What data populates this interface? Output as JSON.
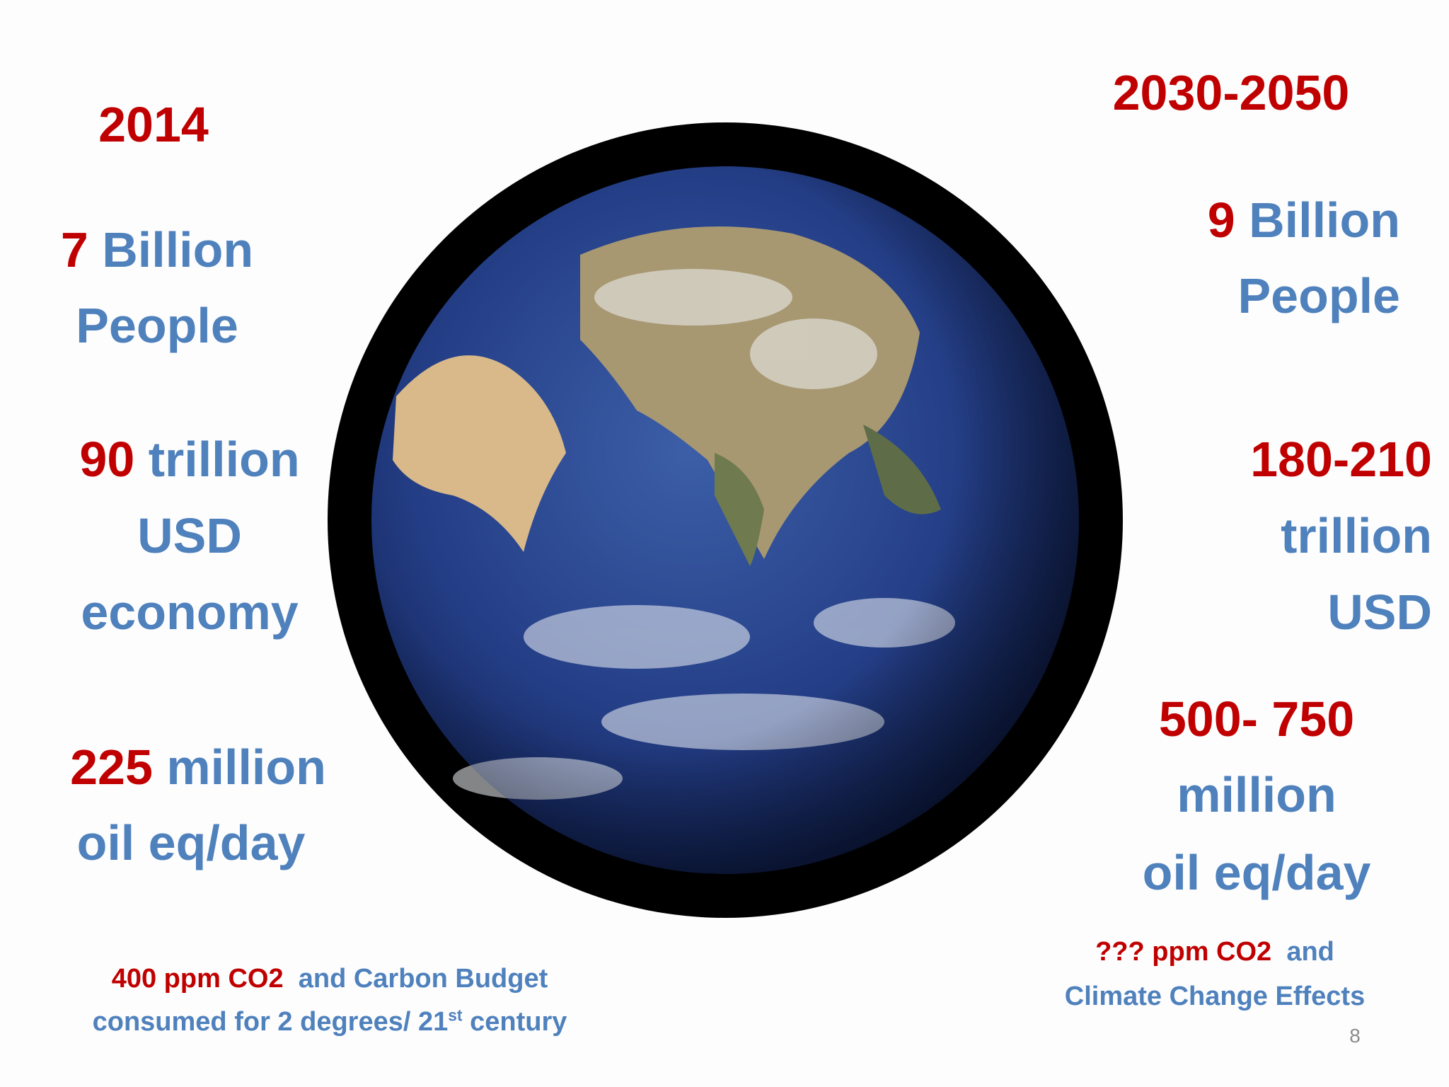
{
  "left": {
    "year": "2014",
    "population": {
      "number": "7",
      "unit": "Billion",
      "line2": "People"
    },
    "economy": {
      "number": "90",
      "unit": "trillion",
      "line2": "USD",
      "line3": "economy"
    },
    "energy": {
      "number": "225",
      "unit": "million",
      "line2": "oil eq/day"
    },
    "footnote": {
      "co2": "400 ppm CO2",
      "rest": "and Carbon Budget",
      "line2": "consumed for 2 degrees/ 21",
      "sup": "st",
      "line2_end": "century"
    }
  },
  "right": {
    "year": "2030-2050",
    "population": {
      "number": "9",
      "unit": "Billion",
      "line2": "People"
    },
    "economy": {
      "number": "180-210",
      "line2": "trillion",
      "line3": "USD"
    },
    "energy": {
      "number": "500- 750",
      "line2": "million",
      "line3": "oil eq/day"
    },
    "footnote": {
      "co2": "??? ppm CO2",
      "rest": "and",
      "line2": "Climate Change Effects"
    }
  },
  "page_number": "8"
}
